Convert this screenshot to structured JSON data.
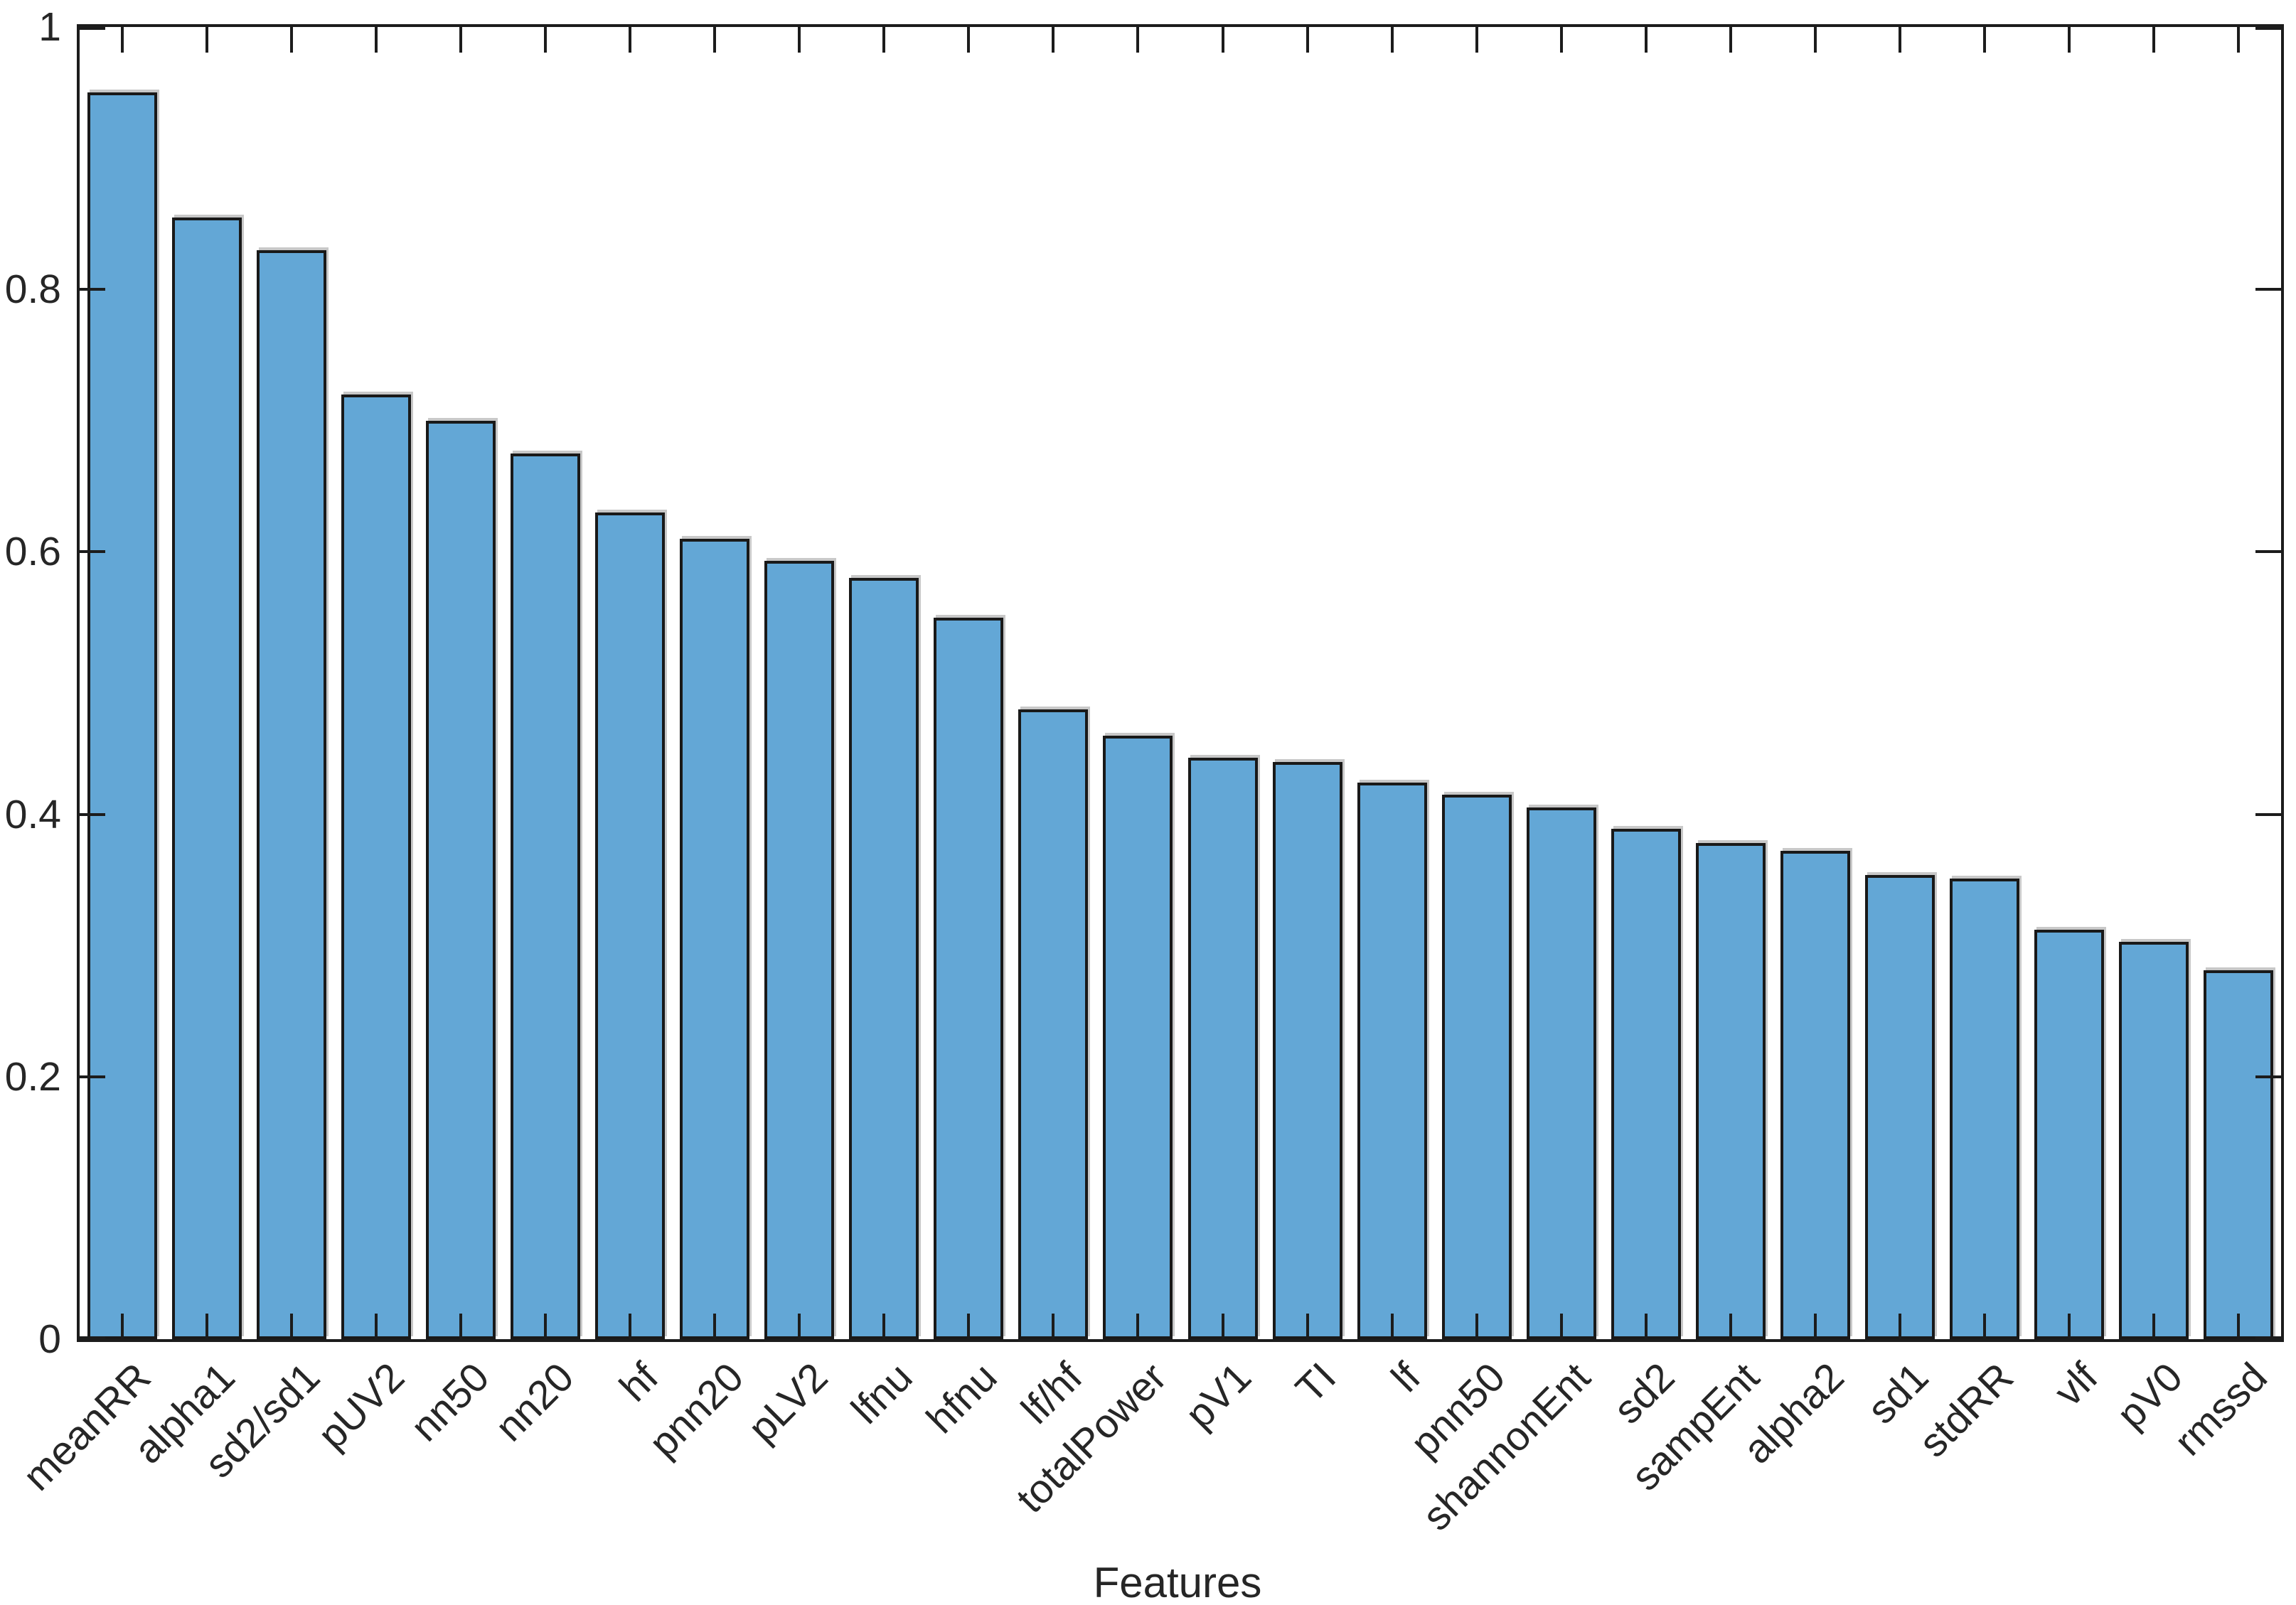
{
  "chart_data": {
    "type": "bar",
    "title": "",
    "xlabel": "Features",
    "ylabel": "",
    "ylim": [
      0,
      1
    ],
    "grid": false,
    "legend": null,
    "ytick_values": [
      0,
      0.2,
      0.4,
      0.6,
      0.8,
      1
    ],
    "ytick_labels": [
      "0",
      "0.2",
      "0.4",
      "0.6",
      "0.8",
      "1"
    ],
    "xtick_angle": 45,
    "categories": [
      "meanRR",
      "alpha1",
      "sd2/sd1",
      "pUV2",
      "nn50",
      "nn20",
      "hf",
      "pnn20",
      "pLV2",
      "lfnu",
      "hfnu",
      "lf/hf",
      "totalPower",
      "pV1",
      "TI",
      "lf",
      "pnn50",
      "shannonEnt",
      "sd2",
      "sampEnt",
      "alpha2",
      "sd1",
      "stdRR",
      "vlf",
      "pV0",
      "rmssd"
    ],
    "values": [
      0.95,
      0.855,
      0.83,
      0.72,
      0.7,
      0.675,
      0.63,
      0.61,
      0.593,
      0.58,
      0.55,
      0.48,
      0.46,
      0.443,
      0.44,
      0.424,
      0.415,
      0.405,
      0.389,
      0.378,
      0.372,
      0.354,
      0.351,
      0.312,
      0.303,
      0.281
    ],
    "colors": {
      "bar_fill": "#63A7D6",
      "bar_edge": "#191919",
      "axis": "#1c1c1c",
      "tick_label": "#262626"
    }
  }
}
